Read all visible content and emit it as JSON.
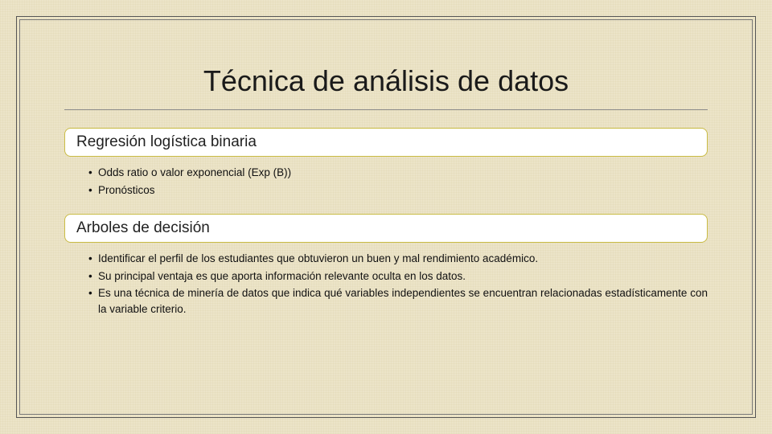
{
  "slide": {
    "title": "Técnica de análisis de datos",
    "background_color": "#ece4c8",
    "frame_outer_color": "#555555",
    "frame_inner_color": "#777777",
    "divider_color": "#8a8a8a",
    "title_fontsize": 36,
    "header_border_color": "#c9bb44",
    "header_bg": "#ffffff",
    "header_fontsize": 19,
    "body_fontsize": 13.5,
    "section1": {
      "heading": "Regresión logística binaria",
      "bullets": [
        "Odds ratio o valor exponencial (Exp (B))",
        "Pronósticos"
      ]
    },
    "section2": {
      "heading": "Arboles de decisión",
      "bullets": [
        "Identificar el perfil de los estudiantes que obtuvieron un buen y mal rendimiento académico.",
        "Su principal ventaja es que aporta información relevante oculta en los datos.",
        "Es una técnica de minería de datos que indica qué variables independientes se encuentran relacionadas estadísticamente con la variable criterio."
      ]
    }
  }
}
